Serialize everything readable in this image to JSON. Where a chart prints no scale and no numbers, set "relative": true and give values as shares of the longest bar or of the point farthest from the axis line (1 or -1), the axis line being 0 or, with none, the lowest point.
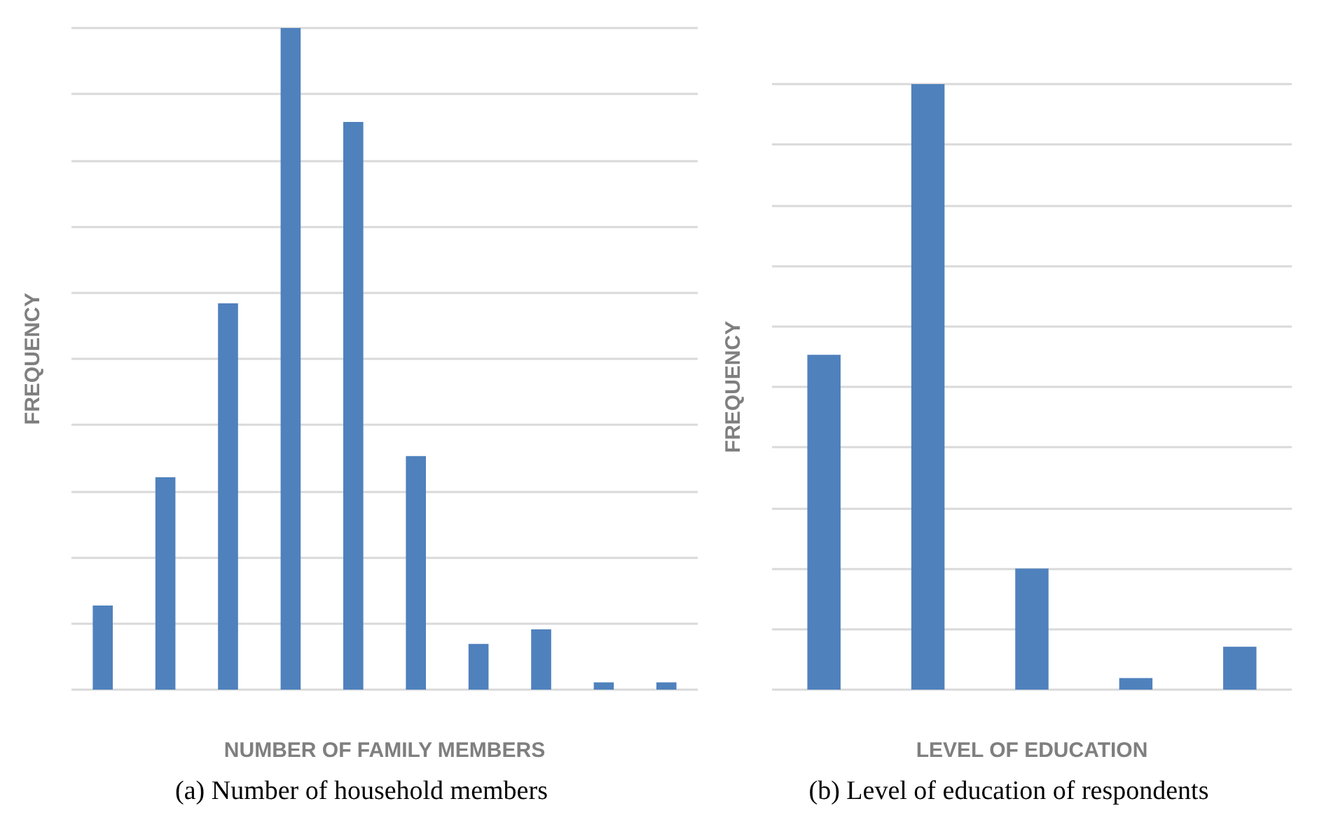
{
  "chart_data": [
    {
      "type": "bar",
      "xlabel": "NUMBER OF FAMILY MEMBERS",
      "ylabel": "FREQUENCY",
      "categories": [
        null,
        null,
        null,
        null,
        null,
        null,
        null,
        null,
        null,
        null
      ],
      "values": [
        0.127,
        0.321,
        0.584,
        1,
        0.858,
        0.353,
        0.069,
        0.091,
        0.011,
        0.011
      ],
      "relative": true,
      "color": "#4f81bd",
      "grid": "y",
      "annotations": [
        "(a)  Number of household members"
      ]
    },
    {
      "type": "bar",
      "xlabel": "LEVEL OF EDUCATION",
      "ylabel": "FREQUENCY",
      "categories": [
        null,
        null,
        null,
        null,
        null
      ],
      "values": [
        0.553,
        1,
        0.2,
        0.019,
        0.071
      ],
      "relative": true,
      "color": "#4f81bd",
      "grid": "y",
      "annotations": [
        "(b)  Level of education of respondents"
      ]
    }
  ]
}
